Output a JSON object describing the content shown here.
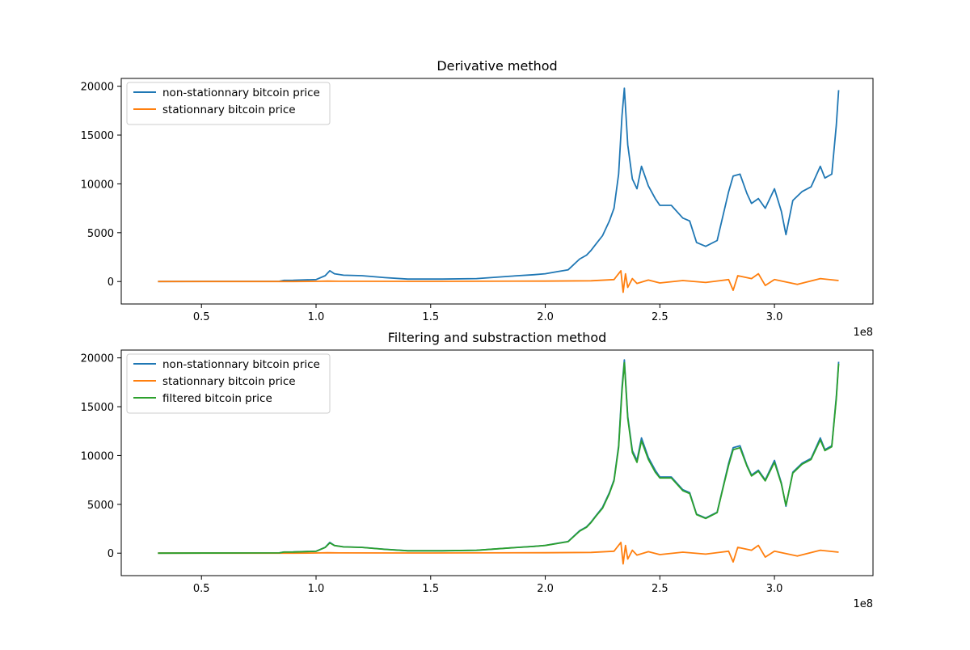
{
  "chart_data": [
    {
      "type": "line",
      "title": "Derivative method",
      "xlabel": "",
      "ylabel": "",
      "x_offset_label": "1e8",
      "xlim": [
        0.15,
        3.43
      ],
      "ylim": [
        -2300,
        20800
      ],
      "x_ticks": [
        0.5,
        1.0,
        1.5,
        2.0,
        2.5,
        3.0
      ],
      "x_tick_labels": [
        "0.5",
        "1.0",
        "1.5",
        "2.0",
        "2.5",
        "3.0"
      ],
      "y_ticks": [
        0,
        5000,
        10000,
        15000,
        20000
      ],
      "y_tick_labels": [
        "0",
        "5000",
        "10000",
        "15000",
        "20000"
      ],
      "legend_position": "upper-left",
      "series": [
        {
          "name": "non-stationnary bitcoin price",
          "color": "#1f77b4",
          "x": [
            0.31,
            0.84,
            0.86,
            0.9,
            1.0,
            1.04,
            1.06,
            1.08,
            1.12,
            1.2,
            1.3,
            1.4,
            1.55,
            1.7,
            1.85,
            1.95,
            2.0,
            2.05,
            2.1,
            2.15,
            2.18,
            2.2,
            2.22,
            2.25,
            2.28,
            2.3,
            2.32,
            2.335,
            2.345,
            2.36,
            2.38,
            2.4,
            2.42,
            2.45,
            2.48,
            2.5,
            2.55,
            2.6,
            2.63,
            2.66,
            2.7,
            2.75,
            2.78,
            2.8,
            2.82,
            2.85,
            2.88,
            2.9,
            2.93,
            2.96,
            3.0,
            3.03,
            3.05,
            3.08,
            3.12,
            3.16,
            3.2,
            3.22,
            3.25,
            3.27,
            3.28
          ],
          "values": [
            0,
            30,
            120,
            130,
            200,
            600,
            1100,
            800,
            650,
            600,
            400,
            250,
            250,
            300,
            550,
            700,
            800,
            1000,
            1200,
            2300,
            2700,
            3200,
            3800,
            4700,
            6200,
            7500,
            11000,
            17000,
            19800,
            14000,
            10500,
            9500,
            11800,
            9800,
            8500,
            7800,
            7800,
            6500,
            6200,
            4000,
            3600,
            4200,
            7200,
            9200,
            10800,
            11000,
            9000,
            8000,
            8500,
            7500,
            9500,
            7200,
            4800,
            8300,
            9200,
            9700,
            11800,
            10600,
            11000,
            16000,
            19600
          ]
        },
        {
          "name": "stationnary bitcoin price",
          "color": "#ff7f0e",
          "x": [
            0.31,
            0.9,
            1.0,
            1.05,
            1.1,
            1.5,
            2.0,
            2.2,
            2.3,
            2.33,
            2.34,
            2.35,
            2.36,
            2.38,
            2.4,
            2.45,
            2.5,
            2.6,
            2.7,
            2.8,
            2.82,
            2.84,
            2.9,
            2.93,
            2.96,
            3.0,
            3.1,
            3.2,
            3.28
          ],
          "values": [
            0,
            5,
            20,
            40,
            30,
            20,
            40,
            80,
            200,
            1100,
            -1100,
            800,
            -600,
            300,
            -200,
            150,
            -150,
            100,
            -100,
            200,
            -900,
            600,
            300,
            800,
            -400,
            200,
            -300,
            300,
            100
          ]
        }
      ]
    },
    {
      "type": "line",
      "title": "Filtering and substraction method",
      "xlabel": "",
      "ylabel": "",
      "x_offset_label": "1e8",
      "xlim": [
        0.15,
        3.43
      ],
      "ylim": [
        -2300,
        20800
      ],
      "x_ticks": [
        0.5,
        1.0,
        1.5,
        2.0,
        2.5,
        3.0
      ],
      "x_tick_labels": [
        "0.5",
        "1.0",
        "1.5",
        "2.0",
        "2.5",
        "3.0"
      ],
      "y_ticks": [
        0,
        5000,
        10000,
        15000,
        20000
      ],
      "y_tick_labels": [
        "0",
        "5000",
        "10000",
        "15000",
        "20000"
      ],
      "legend_position": "upper-left",
      "series": [
        {
          "name": "non-stationnary bitcoin price",
          "color": "#1f77b4",
          "x": [
            0.31,
            0.84,
            0.86,
            0.9,
            1.0,
            1.04,
            1.06,
            1.08,
            1.12,
            1.2,
            1.3,
            1.4,
            1.55,
            1.7,
            1.85,
            1.95,
            2.0,
            2.05,
            2.1,
            2.15,
            2.18,
            2.2,
            2.22,
            2.25,
            2.28,
            2.3,
            2.32,
            2.335,
            2.345,
            2.36,
            2.38,
            2.4,
            2.42,
            2.45,
            2.48,
            2.5,
            2.55,
            2.6,
            2.63,
            2.66,
            2.7,
            2.75,
            2.78,
            2.8,
            2.82,
            2.85,
            2.88,
            2.9,
            2.93,
            2.96,
            3.0,
            3.03,
            3.05,
            3.08,
            3.12,
            3.16,
            3.2,
            3.22,
            3.25,
            3.27,
            3.28
          ],
          "values": [
            0,
            30,
            120,
            130,
            200,
            600,
            1100,
            800,
            650,
            600,
            400,
            250,
            250,
            300,
            550,
            700,
            800,
            1000,
            1200,
            2300,
            2700,
            3200,
            3800,
            4700,
            6200,
            7500,
            11000,
            17000,
            19800,
            14000,
            10500,
            9500,
            11800,
            9800,
            8500,
            7800,
            7800,
            6500,
            6200,
            4000,
            3600,
            4200,
            7200,
            9200,
            10800,
            11000,
            9000,
            8000,
            8500,
            7500,
            9500,
            7200,
            4800,
            8300,
            9200,
            9700,
            11800,
            10600,
            11000,
            16000,
            19600
          ]
        },
        {
          "name": "stationnary bitcoin price",
          "color": "#ff7f0e",
          "x": [
            0.31,
            0.9,
            1.0,
            1.05,
            1.1,
            1.5,
            2.0,
            2.2,
            2.3,
            2.33,
            2.34,
            2.35,
            2.36,
            2.38,
            2.4,
            2.45,
            2.5,
            2.6,
            2.7,
            2.8,
            2.82,
            2.84,
            2.9,
            2.93,
            2.96,
            3.0,
            3.1,
            3.2,
            3.28
          ],
          "values": [
            0,
            5,
            20,
            40,
            30,
            20,
            40,
            80,
            200,
            1100,
            -1100,
            800,
            -600,
            300,
            -200,
            150,
            -150,
            100,
            -100,
            200,
            -900,
            600,
            300,
            800,
            -400,
            200,
            -300,
            300,
            100
          ]
        },
        {
          "name": "filtered bitcoin price",
          "color": "#2ca02c",
          "x": [
            0.31,
            0.84,
            0.86,
            0.9,
            1.0,
            1.04,
            1.06,
            1.08,
            1.12,
            1.2,
            1.3,
            1.4,
            1.55,
            1.7,
            1.85,
            1.95,
            2.0,
            2.05,
            2.1,
            2.15,
            2.18,
            2.2,
            2.22,
            2.25,
            2.28,
            2.3,
            2.32,
            2.335,
            2.345,
            2.36,
            2.38,
            2.4,
            2.42,
            2.45,
            2.48,
            2.5,
            2.55,
            2.6,
            2.63,
            2.66,
            2.7,
            2.75,
            2.78,
            2.8,
            2.82,
            2.85,
            2.88,
            2.9,
            2.93,
            2.96,
            3.0,
            3.03,
            3.05,
            3.08,
            3.12,
            3.16,
            3.2,
            3.22,
            3.25,
            3.27,
            3.28
          ],
          "values": [
            0,
            30,
            110,
            120,
            190,
            580,
            1050,
            780,
            640,
            590,
            390,
            240,
            245,
            295,
            540,
            690,
            790,
            980,
            1180,
            2250,
            2650,
            3150,
            3750,
            4600,
            6100,
            7400,
            10800,
            16600,
            19500,
            13800,
            10300,
            9300,
            11500,
            9600,
            8300,
            7700,
            7700,
            6400,
            6100,
            3950,
            3550,
            4150,
            7100,
            9000,
            10600,
            10800,
            8900,
            7900,
            8400,
            7400,
            9300,
            7100,
            4900,
            8200,
            9100,
            9600,
            11600,
            10500,
            10900,
            15800,
            19400
          ]
        }
      ]
    }
  ]
}
